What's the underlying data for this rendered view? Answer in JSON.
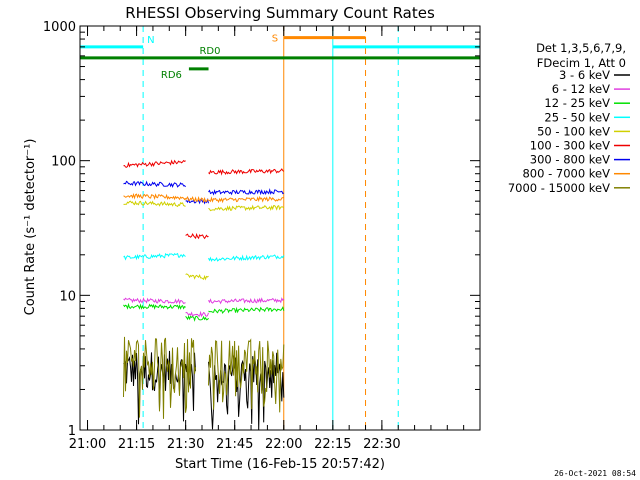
{
  "chart_data": {
    "type": "line",
    "title": "RHESSI Observing Summary Count Rates",
    "xlabel": "Start Time (16-Feb-15 20:57:42)",
    "ylabel": "Count Rate (s⁻¹ detector⁻¹)",
    "x_range": [
      "20:57:42",
      "23:00:00"
    ],
    "y_scale": "log",
    "ylim": [
      1,
      1000
    ],
    "x_ticks": [
      "21:00",
      "21:15",
      "21:30",
      "21:45",
      "22:00",
      "22:15",
      "22:30"
    ],
    "y_ticks": [
      "1",
      "10",
      "100",
      "1000"
    ],
    "grid": false,
    "legend_position": "right",
    "legend_header": [
      "Det 1,3,5,6,7,9,",
      "FDecim 1, Att 0"
    ],
    "timestamp": "26-Oct-2021 08:54",
    "series": [
      {
        "name": "3 - 6 keV",
        "color": "#000000",
        "segments": [
          {
            "t": [
              "21:11",
              "21:33"
            ],
            "values": [
              2.8,
              2.7
            ]
          },
          {
            "t": [
              "21:37",
              "22:00"
            ],
            "values": [
              2.6,
              2.7
            ]
          }
        ]
      },
      {
        "name": "6 - 12 keV",
        "color": "#e040e0",
        "segments": [
          {
            "t": [
              "21:11",
              "21:30"
            ],
            "values": [
              9.2,
              9.0
            ]
          },
          {
            "t": [
              "21:30",
              "21:37"
            ],
            "values": [
              7.3,
              7.2
            ]
          },
          {
            "t": [
              "21:37",
              "22:00"
            ],
            "values": [
              9.0,
              9.2
            ]
          }
        ]
      },
      {
        "name": "12 - 25 keV",
        "color": "#00e000",
        "segments": [
          {
            "t": [
              "21:11",
              "21:30"
            ],
            "values": [
              8.3,
              8.2
            ]
          },
          {
            "t": [
              "21:30",
              "21:37"
            ],
            "values": [
              6.8,
              6.7
            ]
          },
          {
            "t": [
              "21:37",
              "22:00"
            ],
            "values": [
              7.6,
              7.9
            ]
          }
        ]
      },
      {
        "name": "25 - 50 keV",
        "color": "#00ffff",
        "segments": [
          {
            "t": [
              "21:11",
              "21:30"
            ],
            "values": [
              19,
              20
            ]
          },
          {
            "t": [
              "21:37",
              "22:00"
            ],
            "values": [
              18.5,
              19.5
            ]
          }
        ]
      },
      {
        "name": "50 - 100 keV",
        "color": "#d0d000",
        "segments": [
          {
            "t": [
              "21:11",
              "21:30"
            ],
            "values": [
              49,
              47
            ]
          },
          {
            "t": [
              "21:30",
              "21:37"
            ],
            "values": [
              14,
              13.5
            ]
          },
          {
            "t": [
              "21:37",
              "22:00"
            ],
            "values": [
              44,
              45
            ]
          }
        ]
      },
      {
        "name": "100 - 300 keV",
        "color": "#ee0000",
        "segments": [
          {
            "t": [
              "21:11",
              "21:30"
            ],
            "values": [
              92,
              98
            ]
          },
          {
            "t": [
              "21:30",
              "21:37"
            ],
            "values": [
              28,
              27
            ]
          },
          {
            "t": [
              "21:37",
              "22:00"
            ],
            "values": [
              82,
              84
            ]
          }
        ]
      },
      {
        "name": "300 - 800 keV",
        "color": "#0000ee",
        "segments": [
          {
            "t": [
              "21:11",
              "21:30"
            ],
            "values": [
              68,
              66
            ]
          },
          {
            "t": [
              "21:30",
              "21:37"
            ],
            "values": [
              50,
              50
            ]
          },
          {
            "t": [
              "21:37",
              "22:00"
            ],
            "values": [
              58,
              59
            ]
          }
        ]
      },
      {
        "name": "800 - 7000 keV",
        "color": "#ff8800",
        "segments": [
          {
            "t": [
              "21:11",
              "21:30"
            ],
            "values": [
              55,
              53
            ]
          },
          {
            "t": [
              "21:30",
              "21:37"
            ],
            "values": [
              52,
              51
            ]
          },
          {
            "t": [
              "21:37",
              "22:00"
            ],
            "values": [
              51,
              52
            ]
          }
        ]
      },
      {
        "name": "7000 - 15000 keV",
        "color": "#808000",
        "segments": [
          {
            "t": [
              "21:11",
              "21:33"
            ],
            "values": [
              3.5,
              3.4
            ]
          },
          {
            "t": [
              "21:37",
              "22:00"
            ],
            "values": [
              3.3,
              3.4
            ]
          }
        ]
      }
    ],
    "flags": [
      {
        "label": "",
        "color": "#00ffff",
        "y": 700,
        "t": [
          "20:57:42",
          "21:17"
        ]
      },
      {
        "label": "N",
        "color": "#00ffff",
        "y": 700,
        "t": [
          "21:17",
          "21:17"
        ]
      },
      {
        "label": "",
        "color": "#00ffff",
        "y": 700,
        "t": [
          "22:15",
          "23:00"
        ]
      },
      {
        "label": "",
        "color": "#008000",
        "y": 580,
        "t": [
          "20:57:42",
          "23:00"
        ]
      },
      {
        "label": "RD6",
        "color": "#008000",
        "y": 480,
        "t": [
          "21:31",
          "21:37"
        ]
      },
      {
        "label": "RD0",
        "color": "#008000",
        "y": 580,
        "t": [
          "21:33",
          "21:33"
        ]
      },
      {
        "label": "S",
        "color": "#ff8800",
        "y": 820,
        "t": [
          "22:00",
          "22:25"
        ]
      }
    ],
    "vertical_markers": [
      {
        "t": "20:57:42",
        "color": "#00ffff",
        "style": "solid"
      },
      {
        "t": "21:17",
        "color": "#00ffff",
        "style": "dashed"
      },
      {
        "t": "22:00",
        "color": "#ff8800",
        "style": "solid"
      },
      {
        "t": "22:15",
        "color": "#00ffff",
        "style": "solid"
      },
      {
        "t": "22:25",
        "color": "#ff8800",
        "style": "dashed"
      },
      {
        "t": "22:35",
        "color": "#00ffff",
        "style": "dashed"
      }
    ]
  }
}
